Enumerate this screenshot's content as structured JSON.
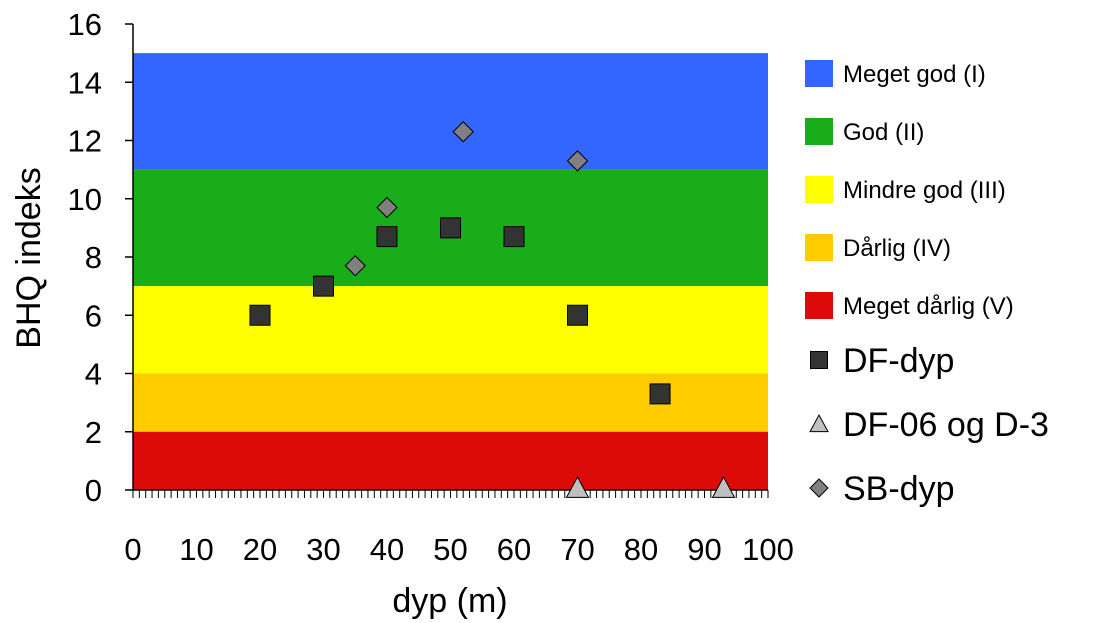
{
  "chart_data": {
    "type": "scatter",
    "xlabel": "dyp (m)",
    "ylabel": "BHQ indeks",
    "xlim": [
      0,
      100
    ],
    "ylim": [
      0,
      16
    ],
    "x_ticks": [
      "0",
      "10",
      "20",
      "30",
      "40",
      "50",
      "60",
      "70",
      "80",
      "90",
      "100"
    ],
    "y_ticks": [
      "0",
      "2",
      "4",
      "6",
      "8",
      "10",
      "12",
      "14",
      "16"
    ],
    "bands": [
      {
        "name": "Meget god (I)",
        "from": 11,
        "to": 15,
        "color": "#3366ff"
      },
      {
        "name": "God (II)",
        "from": 7,
        "to": 11,
        "color": "#1aad1a"
      },
      {
        "name": "Mindre god (III)",
        "from": 4,
        "to": 7,
        "color": "#ffff00"
      },
      {
        "name": "Dårlig (IV)",
        "from": 2,
        "to": 4,
        "color": "#ffcc00"
      },
      {
        "name": "Meget dårlig (V)",
        "from": 0,
        "to": 2,
        "color": "#dd0a0a"
      }
    ],
    "series": [
      {
        "name": "DF-dyp",
        "marker": "square",
        "color": "#333333",
        "points": [
          [
            20,
            6
          ],
          [
            30,
            7
          ],
          [
            40,
            8.7
          ],
          [
            50,
            9
          ],
          [
            60,
            8.7
          ],
          [
            70,
            6
          ],
          [
            83,
            3.3
          ]
        ]
      },
      {
        "name": "DF-06 og D-3",
        "marker": "triangle",
        "color": "#c0c0c0",
        "points": [
          [
            70,
            0
          ],
          [
            93,
            0
          ]
        ]
      },
      {
        "name": "SB-dyp",
        "marker": "diamond",
        "color": "#808080",
        "points": [
          [
            35,
            7.7
          ],
          [
            40,
            9.7
          ],
          [
            52,
            12.3
          ],
          [
            70,
            11.3
          ]
        ]
      }
    ],
    "grid": false,
    "legend_position": "right"
  }
}
